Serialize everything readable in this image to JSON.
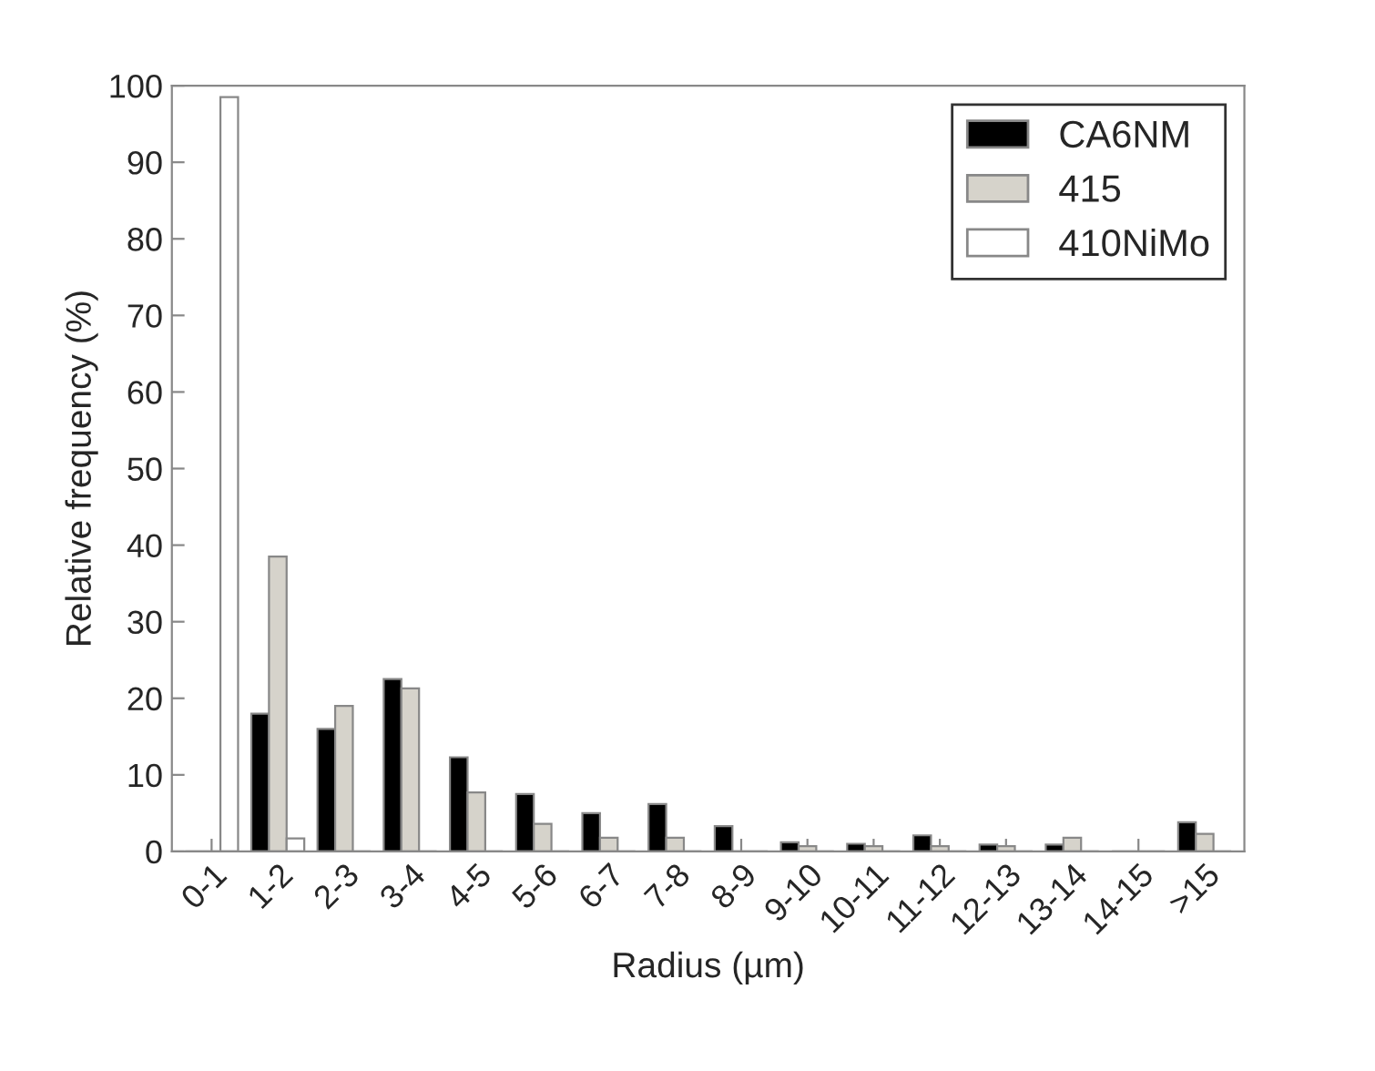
{
  "chart_data": {
    "type": "bar",
    "xlabel": "Radius (µm)",
    "ylabel": "Relative frequency (%)",
    "categories": [
      "0-1",
      "1-2",
      "2-3",
      "3-4",
      "4-5",
      "5-6",
      "6-7",
      "7-8",
      "8-9",
      "9-10",
      "10-11",
      "11-12",
      "12-13",
      "13-14",
      "14-15",
      ">15"
    ],
    "series": [
      {
        "name": "CA6NM",
        "color": "#000000",
        "values": [
          0,
          18,
          16,
          22.5,
          12.3,
          7.5,
          5,
          6.2,
          3.3,
          1.2,
          1,
          2.1,
          0.9,
          0.9,
          0,
          3.8
        ]
      },
      {
        "name": "415",
        "color": "#d6d3cb",
        "values": [
          0,
          38.5,
          19,
          21.3,
          7.7,
          3.6,
          1.8,
          1.8,
          0,
          0.7,
          0.7,
          0.7,
          0.7,
          1.8,
          0,
          2.3
        ]
      },
      {
        "name": "410NiMo",
        "color": "#ffffff",
        "values": [
          98.5,
          1.7,
          null,
          null,
          null,
          0,
          0,
          0,
          0,
          0,
          0,
          0,
          0,
          0,
          0,
          0
        ]
      }
    ],
    "ylim": [
      0,
      100
    ],
    "yticks": [
      0,
      10,
      20,
      30,
      40,
      50,
      60,
      70,
      80,
      90,
      100
    ],
    "grid": false,
    "legend": "top right"
  }
}
